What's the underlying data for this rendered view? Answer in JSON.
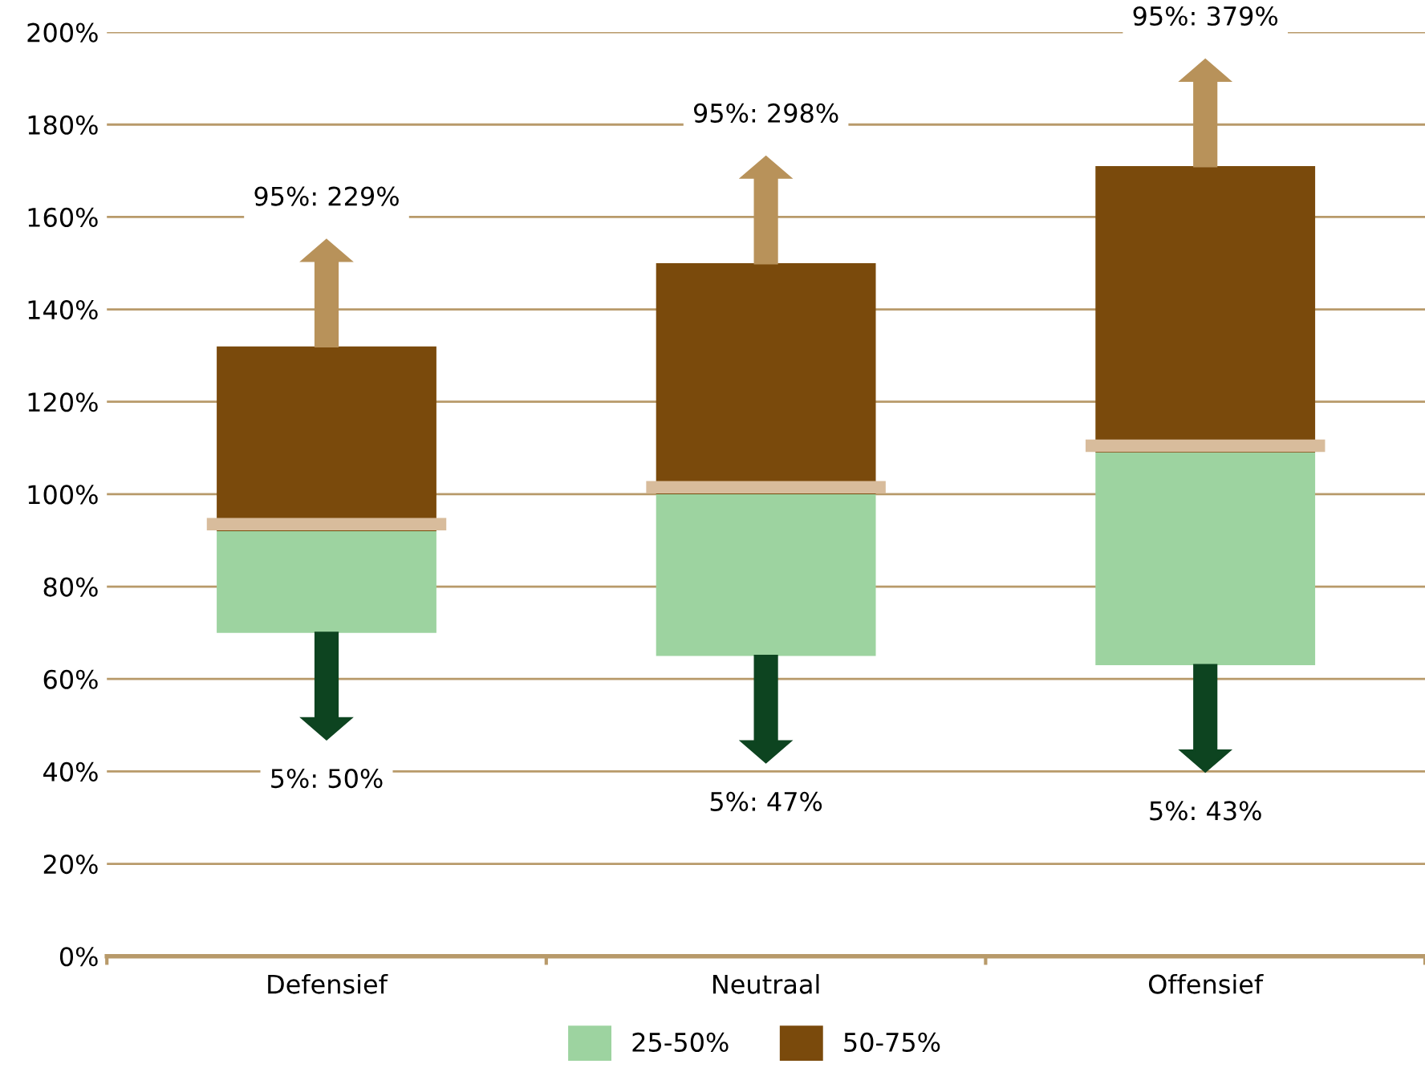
{
  "chart_data": {
    "type": "bar",
    "categories": [
      "Defensief",
      "Neutraal",
      "Offensief"
    ],
    "series": [
      {
        "name": "25-50%",
        "color": "#9dd3a0",
        "base": [
          70,
          65,
          63
        ],
        "values": [
          22,
          35,
          46
        ]
      },
      {
        "name": "50-75%",
        "color": "#7a4a0c",
        "base": [
          92,
          100,
          109
        ],
        "values": [
          40,
          50,
          62
        ]
      }
    ],
    "ylim": [
      0,
      200
    ],
    "yticks": [
      {
        "value": 0,
        "label": "0%"
      },
      {
        "value": 20,
        "label": "20%"
      },
      {
        "value": 40,
        "label": "40%"
      },
      {
        "value": 60,
        "label": "60%"
      },
      {
        "value": 80,
        "label": "80%"
      },
      {
        "value": 100,
        "label": "100%"
      },
      {
        "value": 120,
        "label": "120%"
      },
      {
        "value": 140,
        "label": "140%"
      },
      {
        "value": 160,
        "label": "160%"
      },
      {
        "value": 180,
        "label": "180%"
      },
      {
        "value": 200,
        "label": "200%"
      }
    ],
    "grid": "y",
    "legend": "bottom",
    "annotations": [
      "95%: 229%",
      "5%: 50%",
      "95%: 298%",
      "5%: 47%",
      "95%: 379%",
      "5%: 43%"
    ]
  }
}
